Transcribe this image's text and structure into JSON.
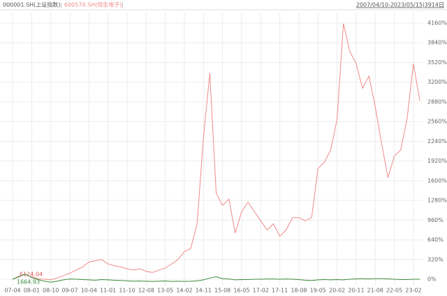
{
  "chart_data": {
    "type": "line",
    "date_range": "2007/04/10-2023/05/15|3914日",
    "categories": [
      "07-04",
      null,
      null,
      "08-01",
      null,
      null,
      "08-10",
      null,
      null,
      "09-07",
      null,
      null,
      "10-04",
      null,
      null,
      "11-01",
      null,
      null,
      "11-10",
      null,
      null,
      "12-08",
      null,
      null,
      "13-05",
      null,
      null,
      "14-02",
      null,
      null,
      "14-11",
      null,
      null,
      "15-08",
      null,
      null,
      "16-05",
      null,
      null,
      "17-02",
      null,
      null,
      "17-11",
      null,
      null,
      "18-08",
      null,
      null,
      "19-05",
      null,
      null,
      "20-02",
      null,
      null,
      "20-11",
      null,
      null,
      "21-08",
      null,
      null,
      "22-05",
      null,
      null,
      "23-02",
      null
    ],
    "series": [
      {
        "name": "000001.SH(上证指数)",
        "color": "#3a8a3a",
        "values": [
          0,
          40,
          85,
          30,
          -5,
          -30,
          -48,
          -30,
          -10,
          5,
          0,
          -5,
          -10,
          -15,
          -5,
          -10,
          -15,
          -20,
          -25,
          -30,
          -28,
          -32,
          -35,
          -30,
          -28,
          -35,
          -33,
          -35,
          -32,
          -25,
          -10,
          20,
          40,
          10,
          5,
          -10,
          -5,
          -5,
          0,
          0,
          5,
          5,
          0,
          5,
          0,
          -5,
          -15,
          -20,
          -10,
          -5,
          -10,
          -5,
          -10,
          0,
          5,
          10,
          5,
          10,
          10,
          5,
          0,
          -5,
          -5,
          0,
          0
        ]
      },
      {
        "name": "600570.SH(恒生电子)",
        "color": "#f08a8a",
        "values": [
          0,
          50,
          80,
          40,
          10,
          0,
          -10,
          20,
          60,
          100,
          150,
          200,
          280,
          300,
          320,
          250,
          220,
          200,
          170,
          150,
          170,
          130,
          110,
          150,
          180,
          250,
          320,
          450,
          500,
          900,
          2300,
          3350,
          1400,
          1200,
          1300,
          750,
          1100,
          1250,
          1100,
          950,
          800,
          900,
          700,
          800,
          1000,
          1000,
          950,
          1000,
          1800,
          1900,
          2100,
          2600,
          4150,
          3700,
          3500,
          3100,
          3300,
          2800,
          2200,
          1650,
          2000,
          2100,
          2600,
          3500,
          2900
        ]
      }
    ],
    "annotations": [
      "6124.04",
      "1664.93"
    ],
    "ylim": [
      -113,
      4330
    ],
    "yticks": [
      {
        "value": 0,
        "label": "0%"
      },
      {
        "value": 320,
        "label": "320%"
      },
      {
        "value": 640,
        "label": "640%"
      },
      {
        "value": 960,
        "label": "960%"
      },
      {
        "value": 1280,
        "label": "1280%"
      },
      {
        "value": 1600,
        "label": "1600%"
      },
      {
        "value": 1920,
        "label": "1920%"
      },
      {
        "value": 2240,
        "label": "2240%"
      },
      {
        "value": 2560,
        "label": "2560%"
      },
      {
        "value": 2880,
        "label": "2880%"
      },
      {
        "value": 3200,
        "label": "3200%"
      },
      {
        "value": 3520,
        "label": "3520%"
      },
      {
        "value": 3840,
        "label": "3840%"
      },
      {
        "value": 4160,
        "label": "4160%"
      }
    ],
    "grid": true
  }
}
